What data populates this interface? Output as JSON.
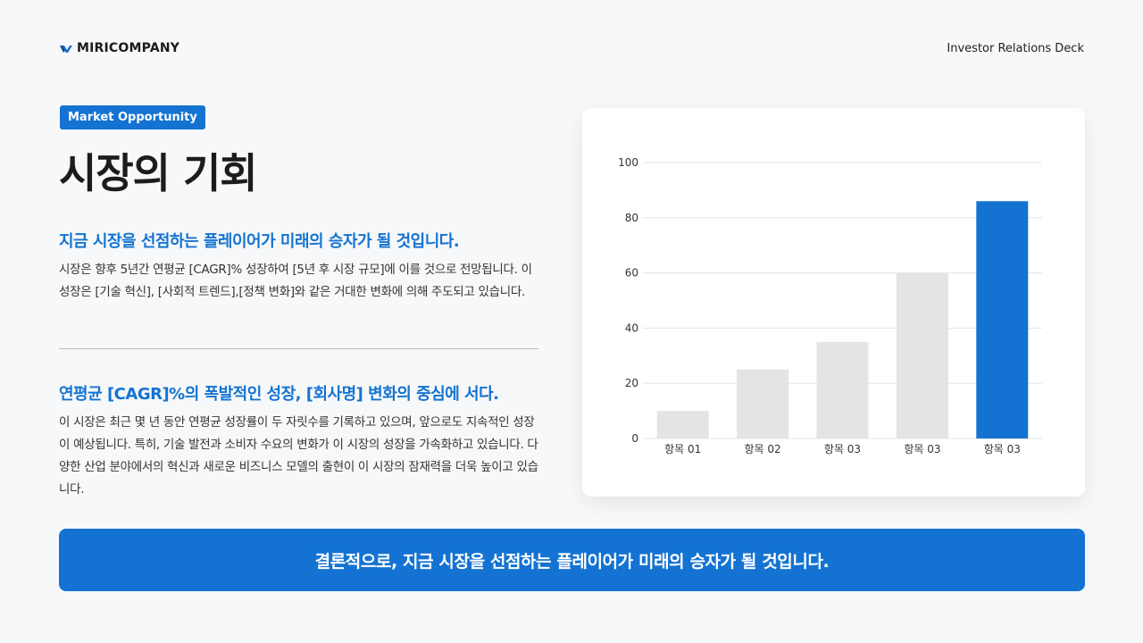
{
  "header": {
    "brand": "MIRICOMPANY",
    "deck_title": "Investor Relations Deck"
  },
  "badge": "Market Opportunity",
  "title": "시장의 기회",
  "section1": {
    "heading": "지금 시장을 선점하는 플레이어가 미래의 승자가 될 것입니다.",
    "body": "시장은 향후 5년간 연평균 [CAGR]% 성장하여 [5년 후 시장 규모]에 이를 것으로 전망됩니다. 이 성장은 [기술 혁신], [사회적 트렌드],[정책 변화]와 같은 거대한 변화에 의해 주도되고 있습니다."
  },
  "section2": {
    "heading": "연평균 [CAGR]%의 폭발적인 성장, [회사명] 변화의 중심에 서다.",
    "body": "이 시장은 최근 몇 년 동안 연평균 성장률이 두 자릿수를 기록하고 있으며, 앞으로도 지속적인 성장이 예상됩니다. 특히, 기술 발전과 소비자 수요의 변화가 이 시장의 성장을 가속화하고 있습니다. 다양한 산업 분야에서의 혁신과 새로운 비즈니스 모델의 출현이 이 시장의 잠재력을 더욱 높이고 있습니다."
  },
  "conclusion": "결론적으로, 지금 시장을 선점하는 플레이어가 미래의 승자가 될 것입니다.",
  "colors": {
    "accent": "#1473d2",
    "bar_default": "#e2e4e5",
    "bar_highlight": "#1473d2"
  },
  "chart_data": {
    "type": "bar",
    "categories": [
      "항목 01",
      "항목 02",
      "항목 03",
      "항목 03",
      "항목 03"
    ],
    "values": [
      10,
      25,
      35,
      60,
      86
    ],
    "highlight_index": 4,
    "ylim": [
      0,
      100
    ],
    "yticks": [
      0,
      20,
      40,
      60,
      80,
      100
    ],
    "grid": true,
    "legend": "none"
  }
}
